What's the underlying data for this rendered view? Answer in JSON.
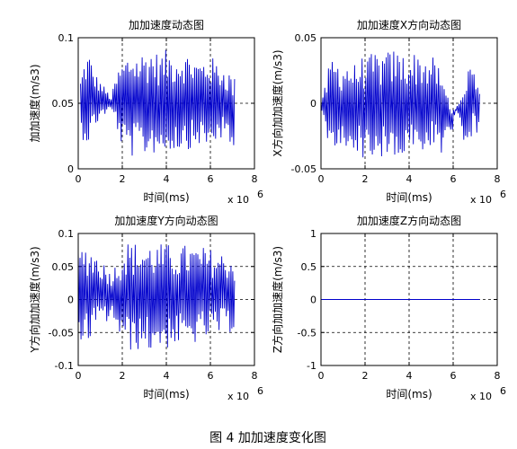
{
  "caption": "图 4  加加速度变化图",
  "chart_data": [
    {
      "type": "line",
      "title": "加加速度动态图",
      "xlabel": "时间(ms)",
      "ylabel": "加加速度(m/s3)",
      "x_multiplier": "x 10",
      "x_exponent": "6",
      "xlim": [
        0,
        8
      ],
      "ylim": [
        0,
        0.1
      ],
      "xticks": [
        "0",
        "2",
        "4",
        "6",
        "8"
      ],
      "yticks": [
        "0",
        "0.05",
        "0.1"
      ],
      "grid": true,
      "color": "#0000cc",
      "series": [
        {
          "x_range": [
            0.1,
            7.1
          ],
          "x": [
            0.1,
            0.3,
            0.5,
            0.7,
            0.9,
            1.1,
            1.3,
            1.5,
            1.7,
            1.9,
            2.1,
            2.3,
            2.5,
            2.7,
            2.9,
            3.1,
            3.3,
            3.5,
            3.7,
            3.9,
            4.1,
            4.3,
            4.5,
            4.7,
            4.9,
            5.1,
            5.3,
            5.5,
            5.7,
            5.9,
            6.1,
            6.3,
            6.5,
            6.7,
            6.9,
            7.1
          ],
          "y_max": [
            0.07,
            0.085,
            0.09,
            0.075,
            0.07,
            0.065,
            0.06,
            0.055,
            0.07,
            0.08,
            0.085,
            0.09,
            0.092,
            0.088,
            0.09,
            0.092,
            0.093,
            0.09,
            0.088,
            0.09,
            0.092,
            0.088,
            0.09,
            0.089,
            0.088,
            0.09,
            0.085,
            0.083,
            0.085,
            0.088,
            0.085,
            0.082,
            0.08,
            0.078,
            0.075,
            0.07
          ],
          "y_min": [
            0.025,
            0.02,
            0.018,
            0.03,
            0.035,
            0.04,
            0.042,
            0.045,
            0.035,
            0.02,
            0.012,
            0.01,
            0.008,
            0.01,
            0.012,
            0.008,
            0.01,
            0.012,
            0.01,
            0.012,
            0.01,
            0.015,
            0.012,
            0.015,
            0.018,
            0.012,
            0.015,
            0.018,
            0.015,
            0.012,
            0.018,
            0.02,
            0.022,
            0.018,
            0.015,
            0.005
          ]
        }
      ]
    },
    {
      "type": "line",
      "title": "加加速度X方向动态图",
      "xlabel": "时间(ms)",
      "ylabel": "X方向加加速度(m/s3)",
      "x_multiplier": "x 10",
      "x_exponent": "6",
      "xlim": [
        0,
        8
      ],
      "ylim": [
        -0.05,
        0.05
      ],
      "xticks": [
        "0",
        "2",
        "4",
        "6",
        "8"
      ],
      "yticks": [
        "-0.05",
        "0",
        "0.05"
      ],
      "grid": true,
      "color": "#0000cc",
      "series": [
        {
          "x_range": [
            0.0,
            7.2
          ],
          "x": [
            0.1,
            0.3,
            0.5,
            0.7,
            0.9,
            1.1,
            1.3,
            1.5,
            1.7,
            1.9,
            2.1,
            2.3,
            2.5,
            2.7,
            2.9,
            3.1,
            3.3,
            3.5,
            3.7,
            3.9,
            4.1,
            4.3,
            4.5,
            4.7,
            4.9,
            5.1,
            5.3,
            5.5,
            5.7,
            5.9,
            6.1,
            6.3,
            6.5,
            6.7,
            6.9,
            7.1
          ],
          "y_max": [
            0.005,
            0.025,
            0.036,
            0.035,
            0.03,
            0.034,
            0.032,
            0.03,
            0.034,
            0.036,
            0.034,
            0.038,
            0.04,
            0.038,
            0.04,
            0.04,
            0.042,
            0.04,
            0.039,
            0.04,
            0.038,
            0.04,
            0.038,
            0.038,
            0.036,
            0.035,
            0.03,
            0.02,
            0.01,
            0.0,
            -0.005,
            0.002,
            0.008,
            0.04,
            0.03,
            0.02
          ],
          "y_min": [
            -0.01,
            -0.035,
            -0.04,
            -0.038,
            -0.035,
            -0.04,
            -0.038,
            -0.035,
            -0.04,
            -0.042,
            -0.04,
            -0.045,
            -0.044,
            -0.042,
            -0.045,
            -0.044,
            -0.045,
            -0.044,
            -0.042,
            -0.044,
            -0.04,
            -0.042,
            -0.04,
            -0.04,
            -0.038,
            -0.035,
            -0.03,
            -0.04,
            -0.02,
            -0.03,
            -0.005,
            -0.01,
            -0.03,
            -0.03,
            -0.025,
            -0.022
          ]
        }
      ]
    },
    {
      "type": "line",
      "title": "加加速度Y方向动态图",
      "xlabel": "时间(ms)",
      "ylabel": "Y方向加加速度(m/s3)",
      "x_multiplier": "x 10",
      "x_exponent": "6",
      "xlim": [
        0,
        8
      ],
      "ylim": [
        -0.1,
        0.1
      ],
      "xticks": [
        "0",
        "2",
        "4",
        "6",
        "8"
      ],
      "yticks": [
        "-0.1",
        "-0.05",
        "0",
        "0.05",
        "0.1"
      ],
      "grid": true,
      "color": "#0000cc",
      "series": [
        {
          "x_range": [
            0.0,
            7.1
          ],
          "x": [
            0.1,
            0.3,
            0.5,
            0.7,
            0.9,
            1.1,
            1.3,
            1.5,
            1.7,
            1.9,
            2.1,
            2.3,
            2.5,
            2.7,
            2.9,
            3.1,
            3.3,
            3.5,
            3.7,
            3.9,
            4.1,
            4.3,
            4.5,
            4.7,
            4.9,
            5.1,
            5.3,
            5.5,
            5.7,
            5.9,
            6.1,
            6.3,
            6.5,
            6.7,
            6.9,
            7.1
          ],
          "y_max": [
            0.08,
            0.085,
            0.083,
            0.075,
            0.07,
            0.06,
            0.05,
            0.045,
            0.055,
            0.07,
            0.085,
            0.09,
            0.088,
            0.086,
            0.088,
            0.086,
            0.087,
            0.086,
            0.085,
            0.086,
            0.084,
            0.082,
            0.08,
            0.082,
            0.084,
            0.083,
            0.082,
            0.08,
            0.08,
            0.078,
            0.076,
            0.074,
            0.072,
            0.07,
            0.068,
            0.06
          ],
          "y_min": [
            -0.06,
            -0.07,
            -0.065,
            -0.05,
            -0.045,
            -0.04,
            -0.035,
            -0.03,
            -0.04,
            -0.06,
            -0.075,
            -0.08,
            -0.078,
            -0.077,
            -0.078,
            -0.078,
            -0.08,
            -0.078,
            -0.075,
            -0.076,
            -0.074,
            -0.072,
            -0.07,
            -0.07,
            -0.072,
            -0.07,
            -0.068,
            -0.065,
            -0.062,
            -0.06,
            -0.058,
            -0.056,
            -0.054,
            -0.052,
            -0.05,
            -0.045
          ]
        }
      ]
    },
    {
      "type": "line",
      "title": "加加速度Z方向动态图",
      "xlabel": "时间(ms)",
      "ylabel": "Z方向加加速度(m/s3)",
      "x_multiplier": "x 10",
      "x_exponent": "6",
      "xlim": [
        0,
        8
      ],
      "ylim": [
        -1,
        1
      ],
      "xticks": [
        "0",
        "2",
        "4",
        "6",
        "8"
      ],
      "yticks": [
        "-1",
        "-0.5",
        "0",
        "0.5",
        "1"
      ],
      "grid": true,
      "color": "#0000cc",
      "series": [
        {
          "x": [
            0,
            7.2
          ],
          "y": [
            0,
            0
          ]
        }
      ]
    }
  ]
}
